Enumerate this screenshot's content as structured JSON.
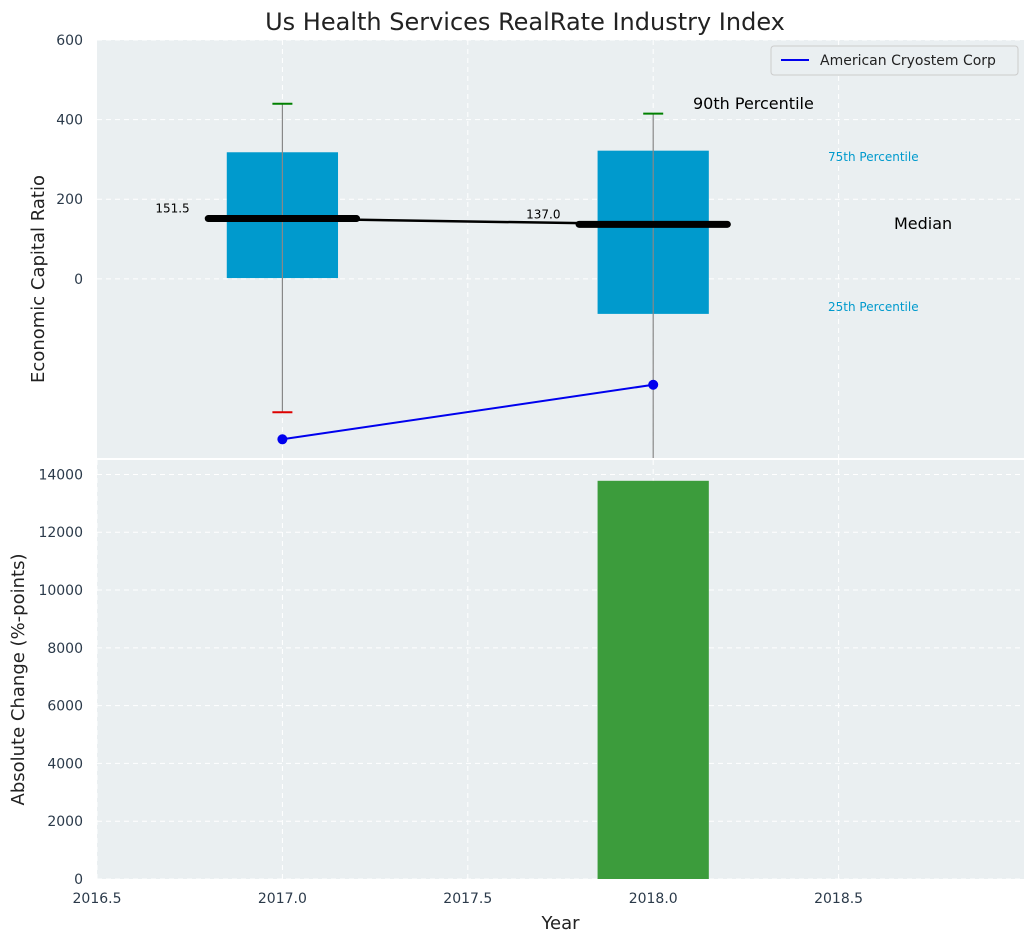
{
  "chart_data": [
    {
      "type": "box",
      "title": "Us Health Services RealRate Industry Index",
      "ylabel": "Economic Capital Ratio",
      "xlabel": "",
      "xlim": [
        2016.5,
        2019.0
      ],
      "ylim": [
        -450,
        600
      ],
      "yticks": [
        0,
        200,
        400,
        600
      ],
      "xticks": [
        2017.0,
        2017.5,
        2018.0,
        2018.5
      ],
      "grid": true,
      "legend": {
        "position": "top-right",
        "entries": [
          "American Cryostem Corp"
        ]
      },
      "boxes": [
        {
          "x": 2017.0,
          "p10": -335,
          "p25": 2,
          "median": 151.5,
          "p75": 318,
          "p90": 440,
          "median_label": "151.5"
        },
        {
          "x": 2018.0,
          "p10": -450,
          "p25": -88,
          "median": 137.0,
          "p75": 322,
          "p90": 415,
          "median_label": "137.0"
        }
      ],
      "median_line": {
        "x": [
          2017.0,
          2018.0
        ],
        "values": [
          151.5,
          137.0
        ]
      },
      "series": [
        {
          "name": "American Cryostem Corp",
          "x": [
            2017.0,
            2018.0
          ],
          "values": [
            -403,
            -266
          ]
        }
      ],
      "annotations": {
        "p90": "90th Percentile",
        "p75": "75th Percentile",
        "median": "Median",
        "p25": "25th Percentile"
      },
      "colors": {
        "box": "#009acd",
        "median": "#000000",
        "series": "#0000ee",
        "p90_cap": "#008000",
        "p10_cap": "#dd0000",
        "background": "#eaeff1"
      }
    },
    {
      "type": "bar",
      "ylabel": "Absolute Change (%-points)",
      "xlabel": "Year",
      "xlim": [
        2016.5,
        2019.0
      ],
      "ylim": [
        0,
        14500
      ],
      "yticks": [
        0,
        2000,
        4000,
        6000,
        8000,
        10000,
        12000,
        14000
      ],
      "xticks": [
        2016.5,
        2017.0,
        2017.5,
        2018.0,
        2018.5
      ],
      "grid": true,
      "x": [
        2018.0
      ],
      "values": [
        13780
      ],
      "colors": {
        "bar": "#3c9c3c"
      }
    }
  ]
}
